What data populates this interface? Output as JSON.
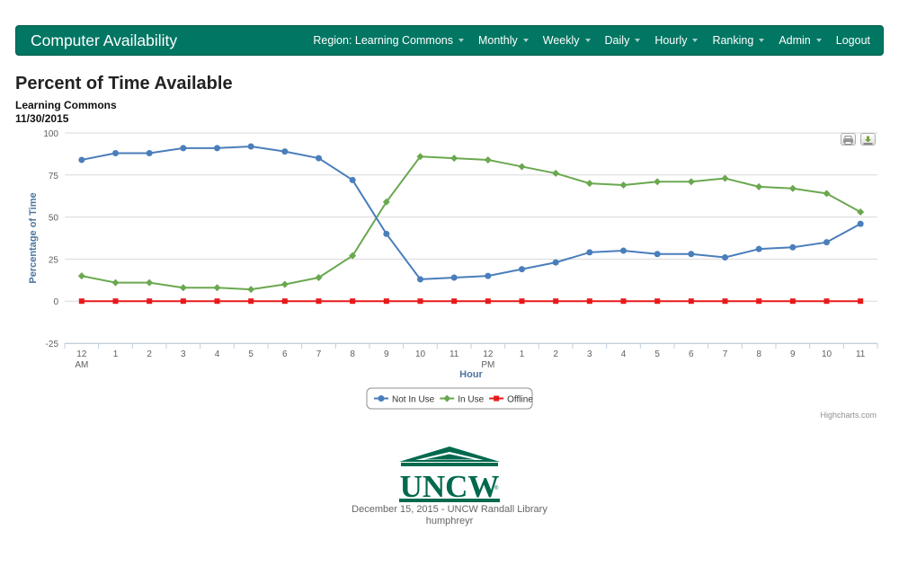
{
  "navbar": {
    "brand": "Computer Availability",
    "items": [
      {
        "label": "Region: Learning Commons",
        "dropdown": true
      },
      {
        "label": "Monthly",
        "dropdown": true
      },
      {
        "label": "Weekly",
        "dropdown": true
      },
      {
        "label": "Daily",
        "dropdown": true
      },
      {
        "label": "Hourly",
        "dropdown": true
      },
      {
        "label": "Ranking",
        "dropdown": true
      },
      {
        "label": "Admin",
        "dropdown": true
      },
      {
        "label": "Logout",
        "dropdown": false
      }
    ],
    "color": "#007663"
  },
  "page": {
    "title": "Percent of Time Available",
    "subtitle": "Learning Commons",
    "date": "11/30/2015"
  },
  "chart_buttons": {
    "print_icon": "printer-icon",
    "export_icon": "download-icon"
  },
  "chart_data": {
    "type": "line",
    "xlabel": "Hour",
    "ylabel": "Percentage of Time",
    "ylim": [
      -25,
      100
    ],
    "yticks": [
      -25,
      0,
      25,
      50,
      75,
      100
    ],
    "grid": true,
    "legend_position": "bottom-center",
    "categories": [
      [
        "12",
        "AM"
      ],
      [
        "1"
      ],
      [
        "2"
      ],
      [
        "3"
      ],
      [
        "4"
      ],
      [
        "5"
      ],
      [
        "6"
      ],
      [
        "7"
      ],
      [
        "8"
      ],
      [
        "9"
      ],
      [
        "10"
      ],
      [
        "11"
      ],
      [
        "12",
        "PM"
      ],
      [
        "1"
      ],
      [
        "2"
      ],
      [
        "3"
      ],
      [
        "4"
      ],
      [
        "5"
      ],
      [
        "6"
      ],
      [
        "7"
      ],
      [
        "8"
      ],
      [
        "9"
      ],
      [
        "10"
      ],
      [
        "11"
      ]
    ],
    "series": [
      {
        "name": "Not In Use",
        "color": "#4a7ebb",
        "marker": "circle",
        "values": [
          84,
          88,
          88,
          91,
          91,
          92,
          89,
          85,
          72,
          40,
          13,
          14,
          15,
          19,
          23,
          29,
          30,
          28,
          28,
          26,
          31,
          32,
          35,
          46
        ]
      },
      {
        "name": "In Use",
        "color": "#6aa84f",
        "marker": "diamond",
        "values": [
          15,
          11,
          11,
          8,
          8,
          7,
          10,
          14,
          27,
          59,
          86,
          85,
          84,
          80,
          76,
          70,
          69,
          71,
          71,
          73,
          68,
          67,
          64,
          53
        ]
      },
      {
        "name": "Offline",
        "color": "#e8191a",
        "marker": "square",
        "values": [
          0,
          0,
          0,
          0,
          0,
          0,
          0,
          0,
          0,
          0,
          0,
          0,
          0,
          0,
          0,
          0,
          0,
          0,
          0,
          0,
          0,
          0,
          0,
          0
        ]
      }
    ]
  },
  "credits": "Highcharts.com",
  "footer": {
    "logo_text": "UNCW",
    "logo_mark": "®",
    "line1": "December 15, 2015 - UNCW Randall Library",
    "line2": "humphreyr"
  }
}
